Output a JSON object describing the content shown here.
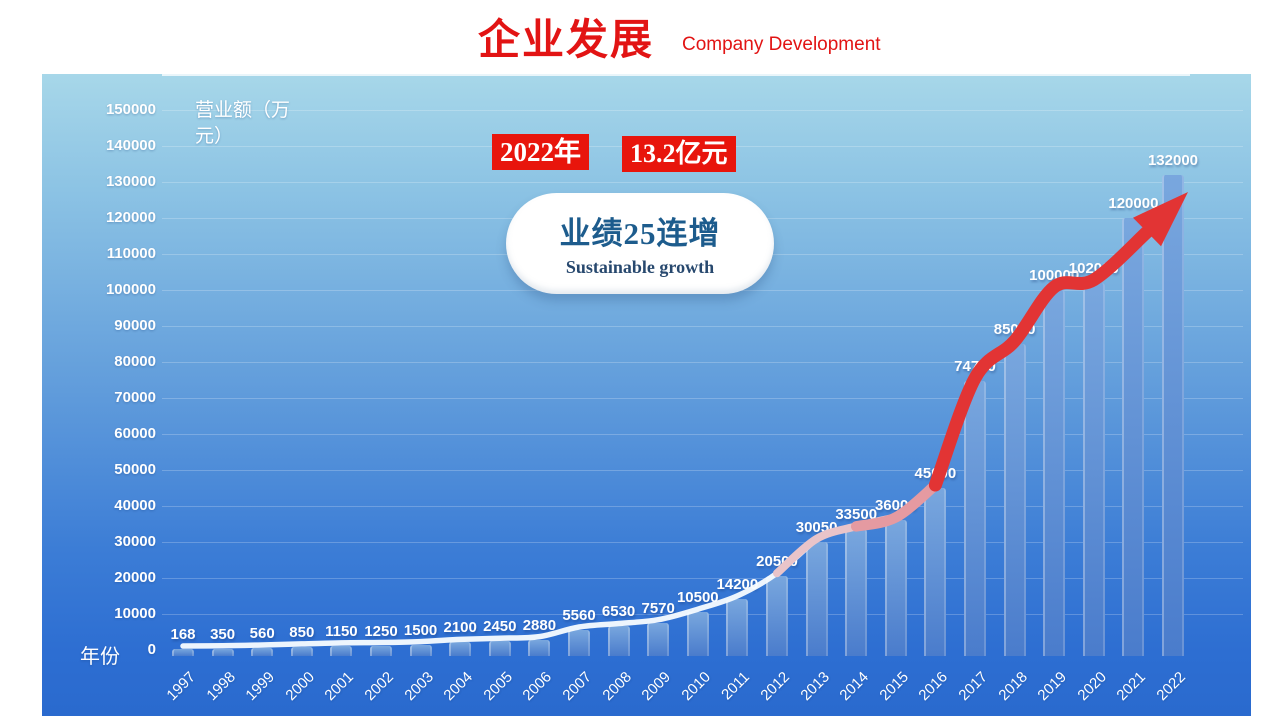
{
  "header": {
    "title": "企业发展",
    "subtitle": "Company Development"
  },
  "callouts": {
    "badge_year": "2022年",
    "badge_amount": "13.2亿元",
    "bubble_title": "业绩25连增",
    "bubble_subtitle": "Sustainable growth"
  },
  "chart_data": {
    "type": "bar",
    "title": "企业发展 Company Development",
    "ylabel": "营业额（万元）",
    "xlabel": "年份",
    "categories": [
      "1997",
      "1998",
      "1999",
      "2000",
      "2001",
      "2002",
      "2003",
      "2004",
      "2005",
      "2006",
      "2007",
      "2008",
      "2009",
      "2010",
      "2011",
      "2012",
      "2013",
      "2014",
      "2015",
      "2016",
      "2017",
      "2018",
      "2019",
      "2020",
      "2021",
      "2022"
    ],
    "values": [
      168,
      350,
      560,
      850,
      1150,
      1250,
      1500,
      2100,
      2450,
      2880,
      5560,
      6530,
      7570,
      10500,
      14200,
      20500,
      30050,
      33500,
      36000,
      45000,
      74700,
      85000,
      100000,
      102000,
      120000,
      132000
    ],
    "ylim": [
      0,
      150000
    ],
    "yticks": [
      0,
      10000,
      20000,
      30000,
      40000,
      50000,
      60000,
      70000,
      80000,
      90000,
      100000,
      110000,
      120000,
      130000,
      140000,
      150000
    ],
    "grid": true,
    "legend": "none",
    "data_labels": true,
    "trend_arrow": "white-to-red rising arrow over bars"
  },
  "colors": {
    "title_red": "#e21414",
    "badge_red": "#e8150c",
    "bubble_text": "#1d5c8d",
    "bubble_subtext": "#27486e",
    "chart_bg_top": "#a7d7e9",
    "chart_bg_bottom": "#2a6ace",
    "bar_top": "#79a7de",
    "bar_bottom": "#4a7ccc",
    "label_white": "#ffffff",
    "arrow_start": "#f8fcff",
    "arrow_mid": "#e59aa1",
    "arrow_end": "#e23434"
  }
}
